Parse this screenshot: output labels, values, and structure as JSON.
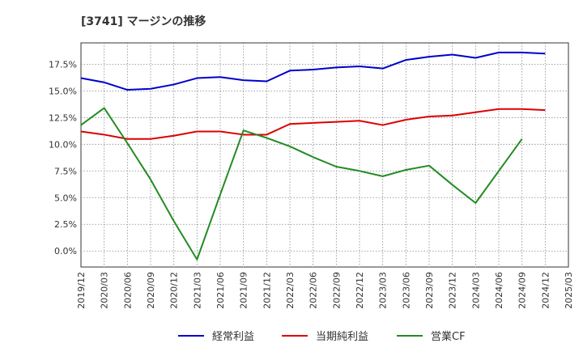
{
  "chart_data": {
    "type": "line",
    "title": "[3741]  マージンの推移",
    "x": [
      "2019/12",
      "2020/03",
      "2020/06",
      "2020/09",
      "2020/12",
      "2021/03",
      "2021/06",
      "2021/09",
      "2021/12",
      "2022/03",
      "2022/06",
      "2022/09",
      "2022/12",
      "2023/03",
      "2023/06",
      "2023/09",
      "2023/12",
      "2024/03",
      "2024/06",
      "2024/09",
      "2024/12",
      "2025/03"
    ],
    "y_ticks": [
      "0.0%",
      "2.5%",
      "5.0%",
      "7.5%",
      "10.0%",
      "12.5%",
      "15.0%",
      "17.5%"
    ],
    "ylim": [
      -1.5,
      19.5
    ],
    "grid": true,
    "legend_position": "bottom",
    "series": [
      {
        "name": "経常利益",
        "color": "#0000cc",
        "values": [
          16.2,
          15.8,
          15.1,
          15.2,
          15.6,
          16.2,
          16.3,
          16.0,
          15.9,
          16.9,
          17.0,
          17.2,
          17.3,
          17.1,
          17.9,
          18.2,
          18.4,
          18.1,
          18.6,
          18.6,
          18.5,
          null
        ]
      },
      {
        "name": "当期純利益",
        "color": "#dd0000",
        "values": [
          11.2,
          10.9,
          10.5,
          10.5,
          10.8,
          11.2,
          11.2,
          10.9,
          10.9,
          11.9,
          12.0,
          12.1,
          12.2,
          11.8,
          12.3,
          12.6,
          12.7,
          13.0,
          13.3,
          13.3,
          13.2,
          null
        ]
      },
      {
        "name": "営業CF",
        "color": "#228b22",
        "values": [
          11.8,
          13.4,
          10.1,
          6.7,
          2.8,
          -0.8,
          5.3,
          11.3,
          10.6,
          9.8,
          8.8,
          7.9,
          7.5,
          7.0,
          7.6,
          8.0,
          6.2,
          4.5,
          7.5,
          10.5,
          null,
          null
        ]
      }
    ]
  }
}
